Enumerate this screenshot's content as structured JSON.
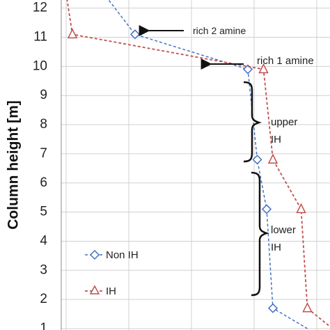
{
  "chart_data": {
    "type": "line",
    "ylabel": "Column height [m]",
    "ylim": [
      1,
      12.3
    ],
    "xlim": [
      0,
      10
    ],
    "y_ticks": [
      "1",
      "2",
      "3",
      "4",
      "5",
      "6",
      "7",
      "8",
      "9",
      "10",
      "11",
      "12"
    ],
    "grid": true,
    "series": [
      {
        "name": "Non IH",
        "color": "#4472c4",
        "marker": "diamond",
        "points": [
          [
            7.7,
            1.0
          ],
          [
            6.6,
            1.7
          ],
          [
            6.4,
            5.1
          ],
          [
            6.1,
            6.8
          ],
          [
            5.8,
            9.9
          ],
          [
            2.2,
            11.1
          ],
          [
            1.2,
            12.5
          ]
        ]
      },
      {
        "name": "IH",
        "color": "#c0504d",
        "marker": "triangle",
        "points": [
          [
            8.5,
            1.0
          ],
          [
            7.7,
            1.7
          ],
          [
            7.5,
            5.1
          ],
          [
            6.6,
            6.8
          ],
          [
            6.3,
            9.9
          ],
          [
            0.2,
            11.1
          ],
          [
            0.0,
            12.5
          ]
        ]
      }
    ],
    "annotations": {
      "rich2": "rich 2 amine",
      "rich1": "rich 1 amine",
      "upper1": "upper",
      "upper2": "IH",
      "lower1": "lower",
      "lower2": "IH"
    }
  }
}
